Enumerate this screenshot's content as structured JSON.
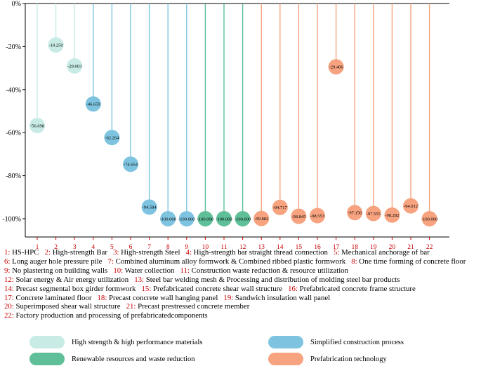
{
  "chart_data": {
    "type": "lollipop",
    "ylim": [
      -108,
      0
    ],
    "yticks": [
      0,
      -20,
      -40,
      -60,
      -80,
      -100
    ],
    "ytick_labels": [
      "0%",
      "-20%",
      "-40%",
      "-60%",
      "-80%",
      "-100%"
    ],
    "x": [
      "1",
      "2",
      "3",
      "4",
      "5",
      "6",
      "7",
      "8",
      "9",
      "10",
      "11",
      "12",
      "13",
      "14",
      "15",
      "16",
      "17",
      "18",
      "19",
      "20",
      "21",
      "22"
    ],
    "values": [
      -56.698,
      -19.25,
      -29.003,
      -46.659,
      -62.264,
      -74.654,
      -94.584,
      -100,
      -100,
      -100,
      -100,
      -100,
      -99.882,
      -94.717,
      -98.845,
      -98.553,
      -29.406,
      -97.156,
      -97.555,
      -98.282,
      -94.012,
      -100
    ],
    "value_labels": [
      "-56.698",
      "-19.250",
      "-29.003",
      "-46.659",
      "-62.264",
      "-74.654",
      "-94.584",
      "-100.000",
      "-100.000",
      "-100.000",
      "-100.000",
      "-100.000",
      "-99.882",
      "-94.717",
      "-98.845",
      "-98.553",
      "-29.406",
      "-97.156",
      "-97.555",
      "-98.282",
      "-94.012",
      "-100.000"
    ],
    "group": [
      "hs",
      "hs",
      "hs",
      "sc",
      "sc",
      "sc",
      "sc",
      "sc",
      "sc",
      "rr",
      "rr",
      "rr",
      "pt",
      "pt",
      "pt",
      "pt",
      "pt",
      "pt",
      "pt",
      "pt",
      "pt",
      "pt"
    ],
    "groups": [
      {
        "id": "hs",
        "name": "High strength & high performance materials",
        "color": "#c8ebe6"
      },
      {
        "id": "sc",
        "name": "Simplified construction process",
        "color": "#7ec4e0"
      },
      {
        "id": "rr",
        "name": "Renewable resources and waste reduction",
        "color": "#5fbf98"
      },
      {
        "id": "pt",
        "name": "Prefabrication technology",
        "color": "#f7a37f"
      }
    ],
    "number_color": "#cc0000"
  },
  "legend_lines": [
    [
      {
        "n": "1:",
        "t": " HS-HPC   "
      },
      {
        "n": "2:",
        "t": " High-strength Bar   "
      },
      {
        "n": "3:",
        "t": " High-strength Steel   "
      },
      {
        "n": "4:",
        "t": " High-strength bar straight thread connection   "
      },
      {
        "n": "5:",
        "t": " Mechanical anchorage of bar"
      }
    ],
    [
      {
        "n": "6:",
        "t": " Long auger hole pressure pile   "
      },
      {
        "n": "7:",
        "t": " Combined aluminum alloy formwork & Combined ribbed plastic formwork   "
      },
      {
        "n": "8:",
        "t": " One time forming of concrete floor"
      }
    ],
    [
      {
        "n": "9:",
        "t": " No plastering on building walls   "
      },
      {
        "n": "10:",
        "t": " Water collection   "
      },
      {
        "n": "11:",
        "t": " Construction waste reduction & resource utilization"
      }
    ],
    [
      {
        "n": "12:",
        "t": " Solar energy & Air energy utilization   "
      },
      {
        "n": "13:",
        "t": " Steel bar welding mesh & Processing and distribution of molding steel bar products"
      }
    ],
    [
      {
        "n": "14:",
        "t": " Precast segmental box girder formwork   "
      },
      {
        "n": "15:",
        "t": " Prefabricated concrete shear wall structure   "
      },
      {
        "n": "16:",
        "t": " Prefabricated concrete frame structure"
      }
    ],
    [
      {
        "n": "17:",
        "t": " Concrete laminated floor   "
      },
      {
        "n": "18:",
        "t": " Precast concrete wall hanging panel   "
      },
      {
        "n": "19:",
        "t": " Sandwich insulation wall panel"
      }
    ],
    [
      {
        "n": "20:",
        "t": " Superimposed shear wall structure   "
      },
      {
        "n": "21:",
        "t": " Precast prestressed concrete member"
      }
    ],
    [
      {
        "n": "22:",
        "t": " Factory production and processing of prefabricatedcomponents"
      }
    ]
  ]
}
